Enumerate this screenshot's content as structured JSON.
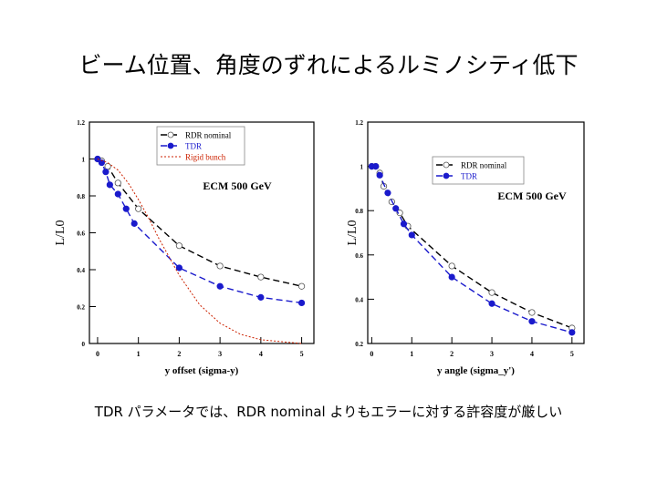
{
  "slide": {
    "title": "ビーム位置、角度のずれによるルミノシティ低下",
    "caption": "TDR パラメータでは、RDR nominal よりもエラーに対する許容度が厳しい"
  },
  "colors": {
    "rdr": "#000000",
    "tdr": "#1a1acc",
    "rigid": "#cc2200",
    "frame": "#000000"
  },
  "chart_data": [
    {
      "type": "line",
      "title": "ECM 500 GeV",
      "xlabel": "y offset (sigma-y)",
      "ylabel": "L/L0",
      "xlim": [
        -0.2,
        5.3
      ],
      "ylim": [
        0,
        1.2
      ],
      "xticks": [
        "0",
        "1",
        "2",
        "3",
        "4",
        "5"
      ],
      "yticks": [
        "0",
        "0.2",
        "0.4",
        "0.6",
        "0.8",
        "1",
        "1.2"
      ],
      "legend_position": "top-right",
      "series": [
        {
          "name": "RDR nominal",
          "style": "black-dash-open-circle",
          "x": [
            0,
            0.1,
            0.25,
            0.5,
            1,
            2,
            3,
            4,
            5
          ],
          "y": [
            1.0,
            0.99,
            0.96,
            0.87,
            0.73,
            0.53,
            0.42,
            0.36,
            0.31
          ]
        },
        {
          "name": "TDR",
          "style": "blue-dash-filled-circle",
          "x": [
            0,
            0.1,
            0.2,
            0.3,
            0.5,
            0.7,
            0.9,
            2,
            3,
            4,
            5
          ],
          "y": [
            1.0,
            0.98,
            0.93,
            0.86,
            0.81,
            0.73,
            0.65,
            0.41,
            0.31,
            0.25,
            0.22
          ]
        },
        {
          "name": "Rigid bunch",
          "style": "red-dotted",
          "x": [
            0,
            0.25,
            0.5,
            0.75,
            1,
            1.25,
            1.5,
            1.75,
            2,
            2.5,
            3,
            3.5,
            4,
            4.5,
            5
          ],
          "y": [
            1.0,
            0.98,
            0.94,
            0.87,
            0.78,
            0.68,
            0.57,
            0.47,
            0.37,
            0.21,
            0.11,
            0.05,
            0.02,
            0.01,
            0.0
          ]
        }
      ]
    },
    {
      "type": "line",
      "title": "ECM 500 GeV",
      "xlabel": "y angle (sigma_y')",
      "ylabel": "L/L0",
      "xlim": [
        -0.1,
        5.3
      ],
      "ylim": [
        0.2,
        1.2
      ],
      "xticks": [
        "0",
        "1",
        "2",
        "3",
        "4",
        "5"
      ],
      "yticks": [
        "0.2",
        "0.4",
        "0.6",
        "0.8",
        "1",
        "1.2"
      ],
      "legend_position": "top-right",
      "series": [
        {
          "name": "RDR nominal",
          "style": "black-dash-open-circle",
          "x": [
            0,
            0.1,
            0.2,
            0.3,
            0.5,
            0.7,
            0.9,
            2,
            3,
            4,
            5
          ],
          "y": [
            1.0,
            1.0,
            0.97,
            0.91,
            0.84,
            0.79,
            0.73,
            0.55,
            0.43,
            0.34,
            0.27
          ]
        },
        {
          "name": "TDR",
          "style": "blue-dash-filled-circle",
          "x": [
            0,
            0.1,
            0.2,
            0.4,
            0.6,
            0.8,
            1,
            2,
            3,
            4,
            5
          ],
          "y": [
            1.0,
            1.0,
            0.96,
            0.88,
            0.81,
            0.74,
            0.69,
            0.5,
            0.38,
            0.3,
            0.25
          ]
        }
      ]
    }
  ]
}
